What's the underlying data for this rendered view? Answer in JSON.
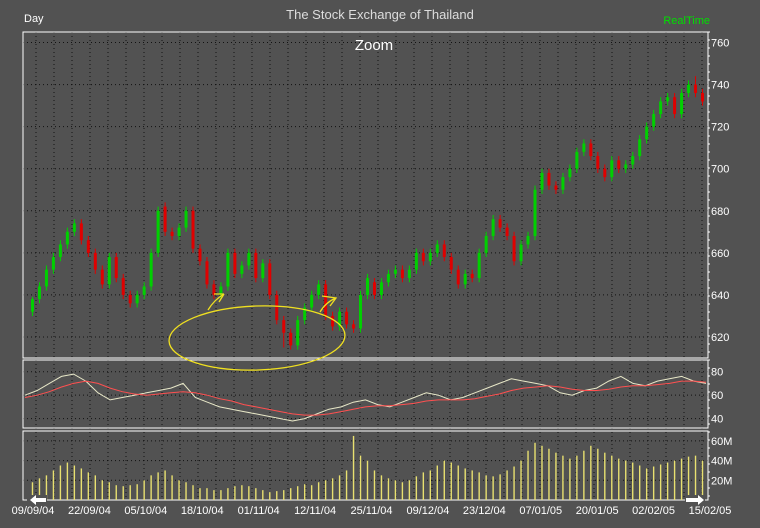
{
  "header": {
    "period": "Day",
    "title": "The Stock Exchange of Thailand",
    "status": "RealTime"
  },
  "colors": {
    "background": "#525252",
    "frame": "#ffffff",
    "grid": "#111111",
    "up_candle": "#00d000",
    "down_candle": "#e00000",
    "oscillator_fast": "#e8e8c8",
    "oscillator_slow": "#ff5050",
    "volume": "#e8e070",
    "annotation": "#f0e020",
    "realtime": "#00e000"
  },
  "chart_data": [
    {
      "type": "candlestick",
      "title": "Zoom",
      "x_dates": [
        "09/09/04",
        "22/09/04",
        "05/10/04",
        "18/10/04",
        "01/11/04",
        "12/11/04",
        "25/11/04",
        "09/12/04",
        "23/12/04",
        "07/01/05",
        "20/01/05",
        "02/02/05",
        "15/02/05"
      ],
      "yticks": [
        620,
        640,
        660,
        680,
        700,
        720,
        740,
        760
      ],
      "ylim": [
        610,
        765
      ],
      "candles": [
        [
          632,
          638,
          630,
          639
        ],
        [
          638,
          644,
          636,
          646
        ],
        [
          644,
          652,
          642,
          654
        ],
        [
          652,
          658,
          650,
          660
        ],
        [
          658,
          664,
          656,
          666
        ],
        [
          664,
          670,
          662,
          672
        ],
        [
          670,
          674,
          668,
          676
        ],
        [
          674,
          666,
          664,
          676
        ],
        [
          666,
          660,
          658,
          668
        ],
        [
          660,
          652,
          650,
          662
        ],
        [
          652,
          645,
          643,
          654
        ],
        [
          645,
          658,
          643,
          660
        ],
        [
          658,
          648,
          646,
          660
        ],
        [
          648,
          640,
          638,
          650
        ],
        [
          640,
          636,
          634,
          642
        ],
        [
          636,
          640,
          634,
          642
        ],
        [
          640,
          644,
          638,
          646
        ],
        [
          644,
          660,
          642,
          662
        ],
        [
          660,
          680,
          658,
          682
        ],
        [
          682,
          670,
          668,
          684
        ],
        [
          670,
          668,
          666,
          672
        ],
        [
          668,
          672,
          666,
          674
        ],
        [
          672,
          680,
          670,
          682
        ],
        [
          680,
          662,
          660,
          682
        ],
        [
          662,
          656,
          654,
          664
        ],
        [
          656,
          645,
          643,
          658
        ],
        [
          645,
          640,
          638,
          647
        ],
        [
          640,
          644,
          638,
          646
        ],
        [
          644,
          660,
          642,
          662
        ],
        [
          660,
          650,
          648,
          662
        ],
        [
          650,
          654,
          648,
          656
        ],
        [
          654,
          660,
          652,
          662
        ],
        [
          660,
          648,
          646,
          662
        ],
        [
          648,
          655,
          646,
          657
        ],
        [
          655,
          640,
          638,
          657
        ],
        [
          640,
          628,
          626,
          642
        ],
        [
          628,
          622,
          615,
          630
        ],
        [
          622,
          616,
          614,
          624
        ],
        [
          616,
          628,
          614,
          630
        ],
        [
          628,
          634,
          626,
          636
        ],
        [
          634,
          640,
          632,
          642
        ],
        [
          640,
          645,
          638,
          647
        ],
        [
          645,
          630,
          628,
          647
        ],
        [
          630,
          625,
          623,
          632
        ],
        [
          625,
          632,
          623,
          634
        ],
        [
          632,
          626,
          624,
          634
        ],
        [
          626,
          624,
          622,
          628
        ],
        [
          624,
          640,
          622,
          642
        ],
        [
          640,
          648,
          638,
          650
        ],
        [
          646,
          640,
          638,
          648
        ],
        [
          640,
          646,
          638,
          648
        ],
        [
          646,
          650,
          644,
          652
        ],
        [
          650,
          652,
          648,
          654
        ],
        [
          652,
          648,
          646,
          654
        ],
        [
          648,
          652,
          646,
          654
        ],
        [
          652,
          660,
          650,
          662
        ],
        [
          660,
          656,
          654,
          662
        ],
        [
          656,
          660,
          654,
          662
        ],
        [
          660,
          664,
          658,
          666
        ],
        [
          664,
          658,
          656,
          666
        ],
        [
          658,
          652,
          650,
          660
        ],
        [
          652,
          645,
          643,
          654
        ],
        [
          645,
          650,
          643,
          652
        ],
        [
          650,
          648,
          646,
          652
        ],
        [
          648,
          660,
          646,
          662
        ],
        [
          660,
          668,
          658,
          670
        ],
        [
          668,
          676,
          666,
          678
        ],
        [
          676,
          672,
          670,
          678
        ],
        [
          672,
          668,
          666,
          674
        ],
        [
          668,
          656,
          654,
          670
        ],
        [
          656,
          664,
          654,
          666
        ],
        [
          664,
          668,
          662,
          670
        ],
        [
          668,
          690,
          666,
          692
        ],
        [
          690,
          698,
          688,
          700
        ],
        [
          698,
          692,
          690,
          700
        ],
        [
          692,
          690,
          688,
          694
        ],
        [
          690,
          696,
          688,
          698
        ],
        [
          696,
          700,
          694,
          702
        ],
        [
          700,
          708,
          698,
          710
        ],
        [
          708,
          712,
          706,
          714
        ],
        [
          712,
          706,
          704,
          714
        ],
        [
          706,
          700,
          698,
          708
        ],
        [
          700,
          696,
          694,
          702
        ],
        [
          696,
          704,
          694,
          706
        ],
        [
          704,
          700,
          698,
          706
        ],
        [
          700,
          702,
          698,
          704
        ],
        [
          702,
          706,
          700,
          708
        ],
        [
          706,
          714,
          704,
          716
        ],
        [
          714,
          720,
          712,
          722
        ],
        [
          720,
          726,
          718,
          728
        ],
        [
          726,
          732,
          724,
          734
        ],
        [
          732,
          734,
          730,
          736
        ],
        [
          734,
          726,
          724,
          736
        ],
        [
          726,
          736,
          724,
          738
        ],
        [
          736,
          740,
          734,
          742
        ],
        [
          740,
          736,
          734,
          744
        ],
        [
          736,
          732,
          730,
          738
        ]
      ]
    },
    {
      "type": "line",
      "yticks": [
        40,
        60,
        80
      ],
      "ylim": [
        32,
        90
      ],
      "series": [
        {
          "values": [
            60,
            64,
            70,
            76,
            78,
            72,
            62,
            56,
            58,
            60,
            62,
            64,
            66,
            70,
            58,
            54,
            50,
            48,
            46,
            44,
            42,
            40,
            38,
            40,
            44,
            48,
            50,
            54,
            56,
            52,
            50,
            54,
            58,
            62,
            60,
            56,
            58,
            62,
            66,
            70,
            74,
            72,
            70,
            68,
            62,
            60,
            64,
            66,
            72,
            76,
            70,
            68,
            72,
            74,
            76,
            72,
            70
          ]
        },
        {
          "values": [
            58,
            60,
            63,
            67,
            70,
            72,
            70,
            66,
            63,
            61,
            60,
            61,
            62,
            63,
            62,
            60,
            57,
            55,
            52,
            50,
            48,
            46,
            44,
            43,
            43,
            44,
            46,
            48,
            50,
            51,
            51,
            52,
            53,
            55,
            56,
            56,
            56,
            57,
            59,
            61,
            64,
            66,
            67,
            68,
            67,
            65,
            64,
            64,
            65,
            67,
            68,
            68,
            69,
            70,
            72,
            72,
            71
          ]
        }
      ]
    },
    {
      "type": "bar",
      "yticks": [
        "20M",
        "40M",
        "60M"
      ],
      "ylim": [
        0,
        70
      ],
      "values": [
        18,
        22,
        25,
        30,
        35,
        38,
        35,
        32,
        28,
        25,
        20,
        18,
        15,
        14,
        15,
        16,
        20,
        25,
        28,
        30,
        25,
        20,
        18,
        15,
        12,
        12,
        10,
        10,
        12,
        14,
        15,
        14,
        12,
        10,
        8,
        9,
        10,
        12,
        14,
        16,
        15,
        18,
        20,
        22,
        25,
        30,
        65,
        45,
        40,
        30,
        25,
        22,
        20,
        18,
        20,
        24,
        28,
        30,
        35,
        40,
        38,
        35,
        32,
        30,
        28,
        25,
        24,
        26,
        30,
        34,
        40,
        50,
        58,
        55,
        52,
        48,
        45,
        42,
        45,
        50,
        55,
        52,
        48,
        45,
        42,
        40,
        38,
        35,
        32,
        34,
        36,
        38,
        40,
        42,
        44,
        45,
        40
      ]
    }
  ],
  "nav": {
    "left_arrow": "arrow-left-icon",
    "right_arrow": "arrow-right-icon"
  }
}
